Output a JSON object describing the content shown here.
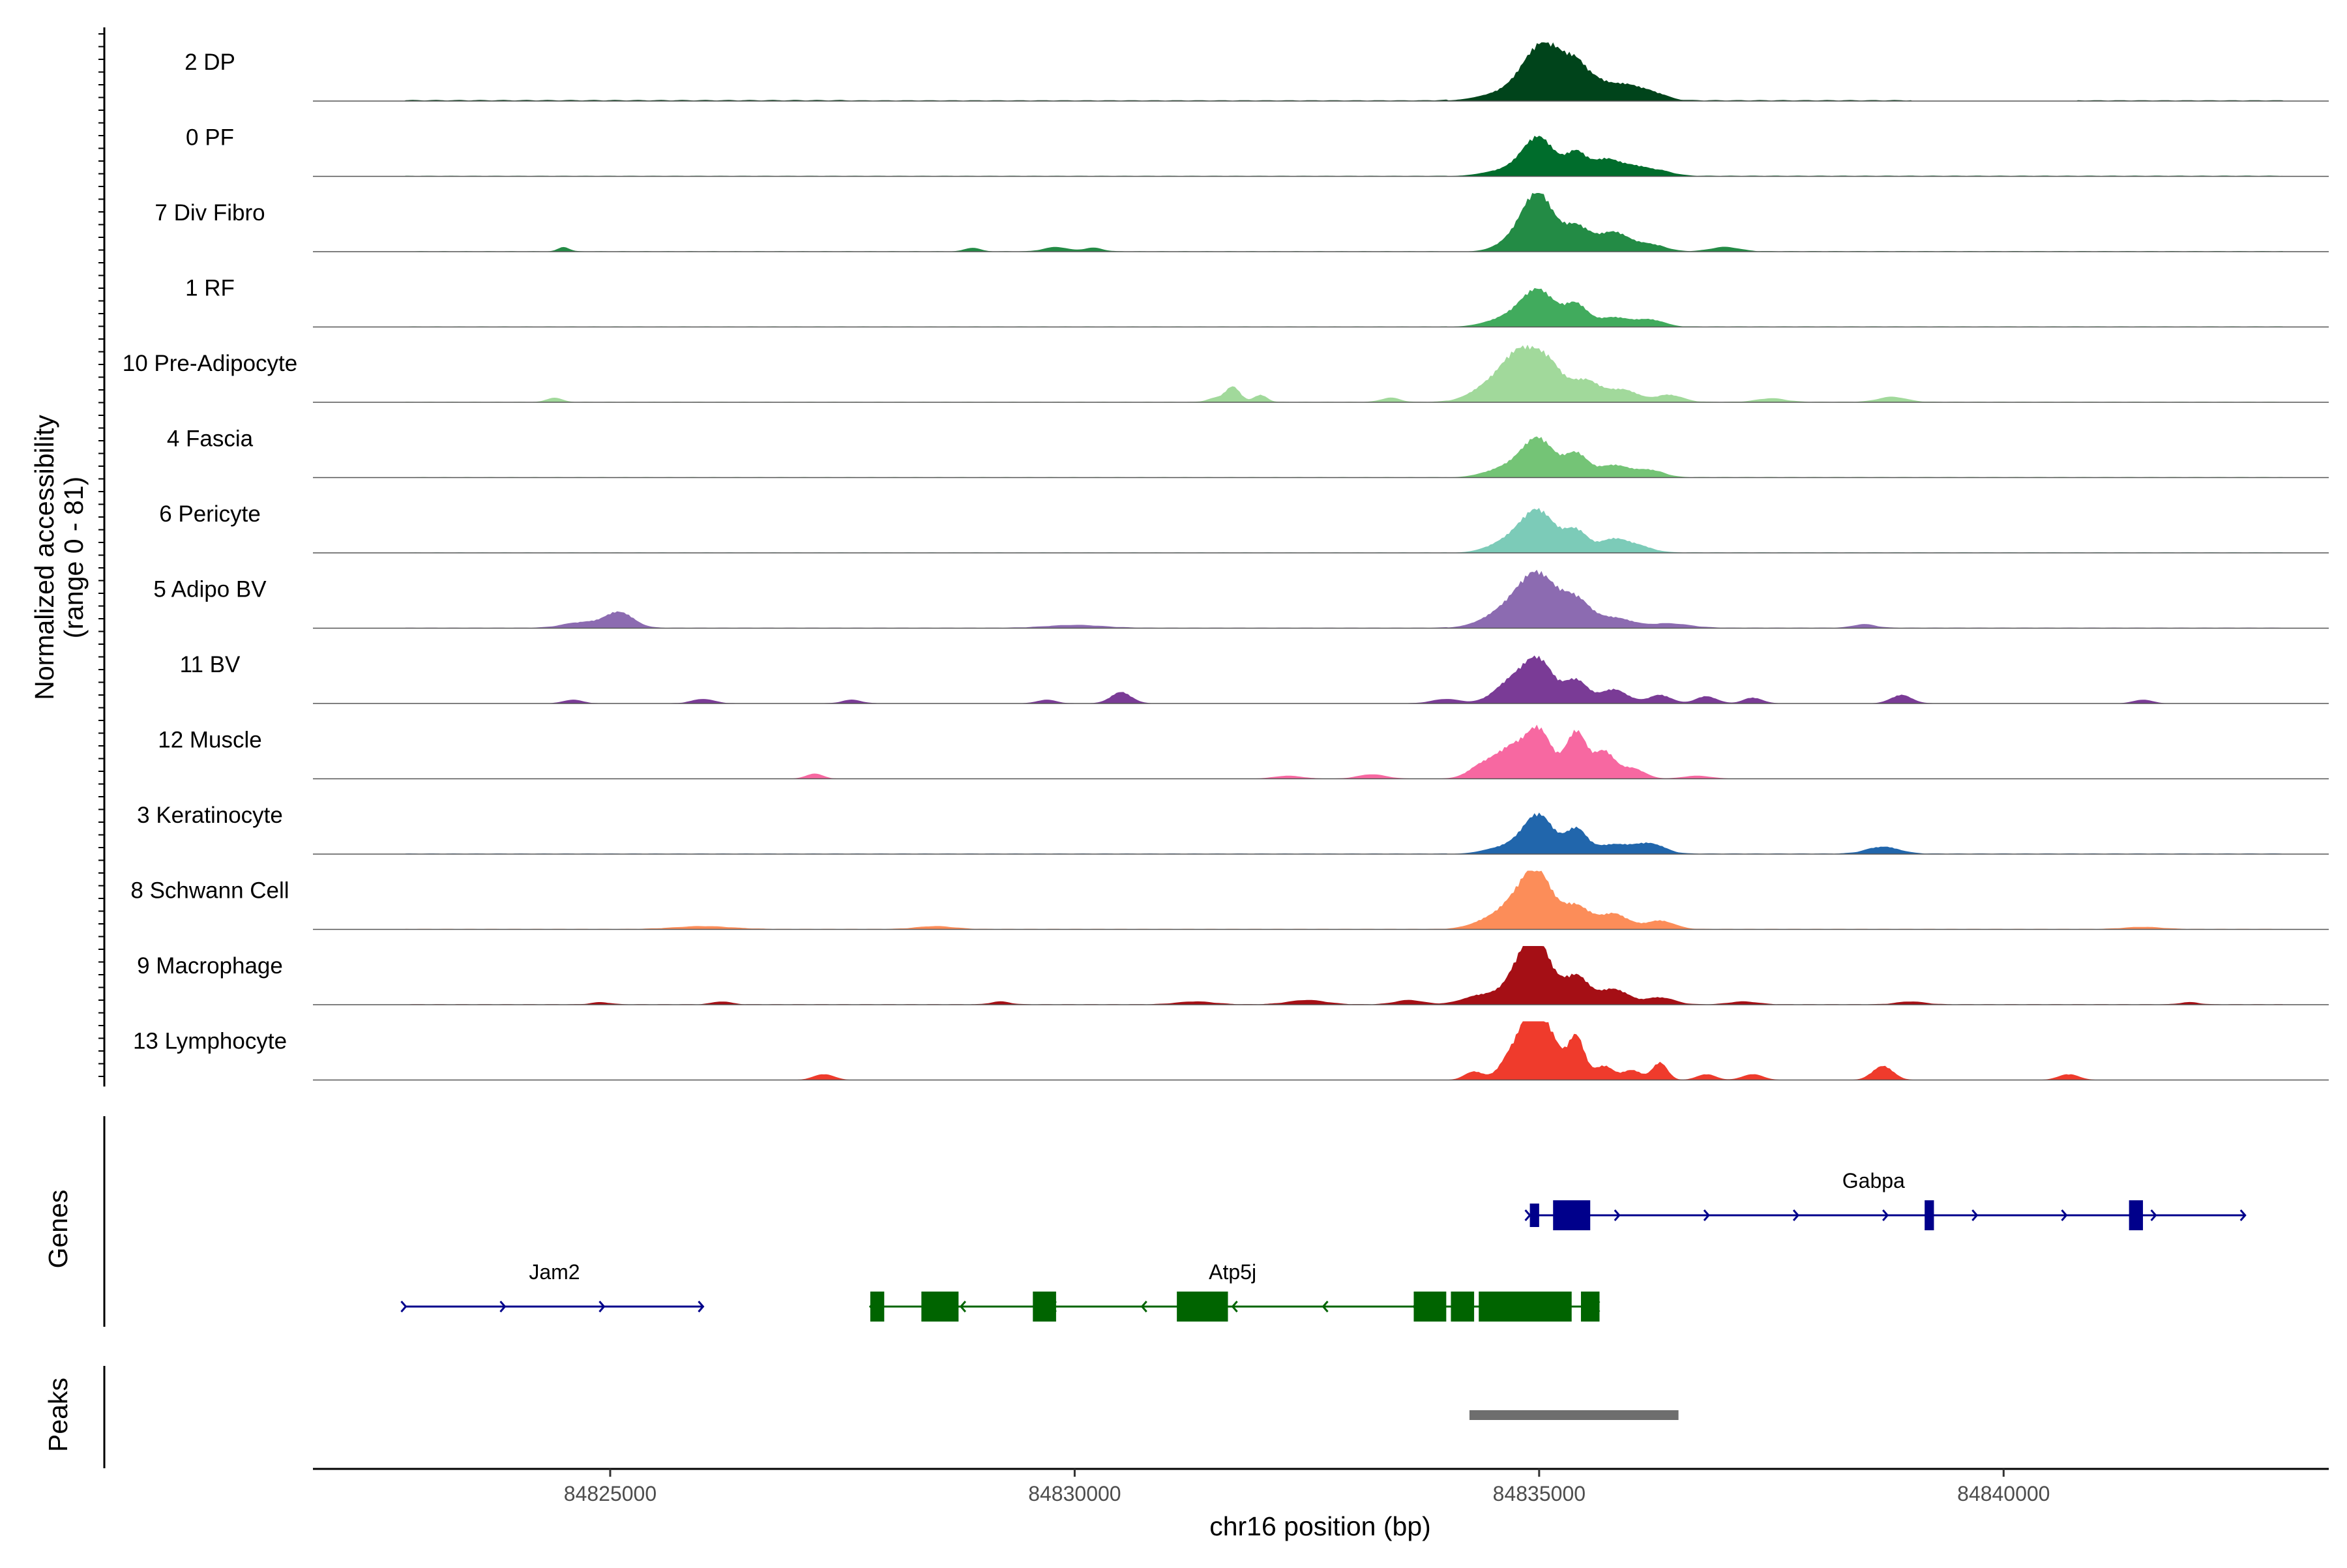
{
  "chart_data": {
    "type": "area",
    "chromosome": "chr16",
    "xlabel": "chr16 position (bp)",
    "ylabel_line1": "Normalized accessibility",
    "ylabel_line2": "(range 0 - 81)",
    "y_range": [
      0,
      81
    ],
    "xlim": [
      84821800,
      84843500
    ],
    "x_ticks": [
      84825000,
      84830000,
      84835000,
      84840000
    ],
    "x_tick_labels": [
      "84825000",
      "84830000",
      "84835000",
      "84840000"
    ],
    "genes_label": "Genes",
    "peaks_label": "Peaks",
    "tracks": [
      {
        "name": "2 DP",
        "color": "#00441b",
        "bg": [
          [
            84822800,
            84827500,
            1.5
          ],
          [
            84827500,
            84834000,
            1.2
          ],
          [
            84836300,
            84839000,
            1.4
          ],
          [
            84840800,
            84843000,
            1.2
          ]
        ],
        "peaks": [
          [
            84834800,
            18,
            320
          ],
          [
            84835000,
            57,
            180
          ],
          [
            84835200,
            30,
            140
          ],
          [
            84835400,
            37,
            110
          ],
          [
            84835600,
            25,
            130
          ],
          [
            84835900,
            22,
            160
          ],
          [
            84836200,
            12,
            150
          ]
        ]
      },
      {
        "name": "0 PF",
        "color": "#006d2c",
        "bg": [
          [
            84822800,
            84834000,
            0.8
          ],
          [
            84836300,
            84843000,
            1.0
          ]
        ],
        "peaks": [
          [
            84834700,
            10,
            260
          ],
          [
            84835000,
            52,
            170
          ],
          [
            84835400,
            32,
            110
          ],
          [
            84835700,
            22,
            140
          ],
          [
            84836000,
            14,
            170
          ],
          [
            84836300,
            6,
            150
          ]
        ]
      },
      {
        "name": "7 Div Fibro",
        "color": "#238b45",
        "bg": [
          [
            84822800,
            84834000,
            0.6
          ],
          [
            84836300,
            84843000,
            0.8
          ]
        ],
        "peaks": [
          [
            84824500,
            6,
            60
          ],
          [
            84828900,
            5,
            80
          ],
          [
            84829800,
            6,
            130
          ],
          [
            84830200,
            5,
            100
          ],
          [
            84834800,
            22,
            200
          ],
          [
            84835000,
            72,
            160
          ],
          [
            84835400,
            35,
            140
          ],
          [
            84835800,
            28,
            170
          ],
          [
            84836200,
            10,
            150
          ],
          [
            84837000,
            6,
            150
          ]
        ]
      },
      {
        "name": "1 RF",
        "color": "#41ab5d",
        "bg": [
          [
            84822800,
            84834000,
            0.6
          ],
          [
            84836300,
            84843000,
            0.8
          ]
        ],
        "peaks": [
          [
            84834700,
            14,
            240
          ],
          [
            84835000,
            48,
            180
          ],
          [
            84835400,
            30,
            120
          ],
          [
            84835800,
            14,
            180
          ],
          [
            84836200,
            10,
            140
          ]
        ]
      },
      {
        "name": "10 Pre-Adipocyte",
        "color": "#a1d99b",
        "bg": [
          [
            84822800,
            84834000,
            0.6
          ],
          [
            84836300,
            84843000,
            0.8
          ]
        ],
        "peaks": [
          [
            84824400,
            6,
            80
          ],
          [
            84831500,
            5,
            80
          ],
          [
            84831700,
            22,
            80
          ],
          [
            84832000,
            10,
            70
          ],
          [
            84833400,
            6,
            100
          ],
          [
            84834500,
            25,
            220
          ],
          [
            84834800,
            60,
            180
          ],
          [
            84835100,
            50,
            160
          ],
          [
            84835500,
            30,
            150
          ],
          [
            84835900,
            18,
            170
          ],
          [
            84836400,
            10,
            140
          ],
          [
            84837500,
            5,
            150
          ],
          [
            84838800,
            7,
            150
          ]
        ]
      },
      {
        "name": "4 Fascia",
        "color": "#74c476",
        "bg": [
          [
            84822800,
            84834000,
            0.6
          ],
          [
            84836300,
            84843000,
            0.8
          ]
        ],
        "peaks": [
          [
            84834700,
            16,
            240
          ],
          [
            84835000,
            50,
            170
          ],
          [
            84835400,
            32,
            120
          ],
          [
            84835800,
            18,
            180
          ],
          [
            84836200,
            10,
            140
          ]
        ]
      },
      {
        "name": "6 Pericyte",
        "color": "#7ccbb8",
        "bg": [
          [
            84822800,
            84834000,
            0.6
          ],
          [
            84836300,
            84843000,
            0.8
          ]
        ],
        "peaks": [
          [
            84834700,
            18,
            220
          ],
          [
            84835000,
            55,
            180
          ],
          [
            84835400,
            30,
            120
          ],
          [
            84835800,
            20,
            160
          ],
          [
            84836100,
            8,
            140
          ]
        ]
      },
      {
        "name": "5 Adipo BV",
        "color": "#8c6bb1",
        "bg": [
          [
            84822800,
            84834000,
            0.7
          ],
          [
            84836300,
            84843000,
            0.8
          ]
        ],
        "peaks": [
          [
            84824700,
            8,
            200
          ],
          [
            84825100,
            22,
            150
          ],
          [
            84830000,
            4,
            300
          ],
          [
            84834700,
            28,
            260
          ],
          [
            84835000,
            65,
            200
          ],
          [
            84835400,
            36,
            150
          ],
          [
            84835800,
            15,
            200
          ],
          [
            84836400,
            6,
            220
          ],
          [
            84838500,
            5,
            120
          ]
        ]
      },
      {
        "name": "11 BV",
        "color": "#7a3b96",
        "bg": [
          [
            84822800,
            84843000,
            0.4
          ]
        ],
        "peaks": [
          [
            84824600,
            5,
            100
          ],
          [
            84826000,
            6,
            120
          ],
          [
            84827600,
            5,
            100
          ],
          [
            84829700,
            5,
            100
          ],
          [
            84830500,
            16,
            110
          ],
          [
            84834000,
            6,
            150
          ],
          [
            84834700,
            30,
            180
          ],
          [
            84835000,
            58,
            160
          ],
          [
            84835400,
            32,
            120
          ],
          [
            84835800,
            20,
            150
          ],
          [
            84836300,
            12,
            120
          ],
          [
            84836800,
            10,
            110
          ],
          [
            84837300,
            8,
            100
          ],
          [
            84838900,
            12,
            110
          ],
          [
            84841500,
            5,
            100
          ]
        ]
      },
      {
        "name": "12 Muscle",
        "color": "#f768a1",
        "bg": [
          [
            84822800,
            84843000,
            0.3
          ]
        ],
        "peaks": [
          [
            84827200,
            7,
            90
          ],
          [
            84832300,
            4,
            150
          ],
          [
            84833200,
            6,
            150
          ],
          [
            84834400,
            20,
            150
          ],
          [
            84834700,
            40,
            150
          ],
          [
            84835000,
            68,
            140
          ],
          [
            84835400,
            67,
            110
          ],
          [
            84835700,
            38,
            110
          ],
          [
            84836000,
            15,
            130
          ],
          [
            84836700,
            4,
            150
          ]
        ]
      },
      {
        "name": "3 Keratinocyte",
        "color": "#2166ac",
        "bg": [
          [
            84822800,
            84834000,
            0.8
          ],
          [
            84836300,
            84843000,
            0.9
          ]
        ],
        "peaks": [
          [
            84834700,
            12,
            240
          ],
          [
            84835000,
            52,
            160
          ],
          [
            84835400,
            34,
            110
          ],
          [
            84835800,
            14,
            200
          ],
          [
            84836200,
            14,
            150
          ],
          [
            84838700,
            10,
            170
          ]
        ]
      },
      {
        "name": "8 Schwann Cell",
        "color": "#fc8d59",
        "bg": [
          [
            84822800,
            84843000,
            0.7
          ]
        ],
        "peaks": [
          [
            84826000,
            4,
            300
          ],
          [
            84828500,
            4,
            200
          ],
          [
            84834500,
            14,
            200
          ],
          [
            84834800,
            35,
            180
          ],
          [
            84835000,
            65,
            160
          ],
          [
            84835400,
            32,
            140
          ],
          [
            84835800,
            22,
            160
          ],
          [
            84836300,
            12,
            150
          ],
          [
            84841500,
            3,
            200
          ]
        ]
      },
      {
        "name": "9 Macrophage",
        "color": "#a50f15",
        "bg": [
          [
            84822800,
            84843000,
            0.7
          ]
        ],
        "peaks": [
          [
            84824900,
            3,
            100
          ],
          [
            84826200,
            4,
            100
          ],
          [
            84829200,
            4,
            100
          ],
          [
            84831300,
            4,
            200
          ],
          [
            84832500,
            6,
            200
          ],
          [
            84833600,
            6,
            150
          ],
          [
            84834400,
            14,
            200
          ],
          [
            84834800,
            45,
            150
          ],
          [
            84835000,
            75,
            150
          ],
          [
            84835400,
            40,
            130
          ],
          [
            84835800,
            22,
            160
          ],
          [
            84836300,
            10,
            150
          ],
          [
            84837200,
            4,
            150
          ],
          [
            84839000,
            4,
            150
          ],
          [
            84842000,
            3,
            100
          ]
        ]
      },
      {
        "name": "13 Lymphocyte",
        "color": "#ef3b2c",
        "bg": [
          [
            84822800,
            84843000,
            0.2
          ]
        ],
        "peaks": [
          [
            84827300,
            8,
            110
          ],
          [
            84834300,
            12,
            100
          ],
          [
            84834700,
            35,
            120
          ],
          [
            84834900,
            75,
            110
          ],
          [
            84835100,
            65,
            120
          ],
          [
            84835400,
            62,
            90
          ],
          [
            84835700,
            20,
            100
          ],
          [
            84836000,
            14,
            100
          ],
          [
            84836300,
            25,
            80
          ],
          [
            84836800,
            8,
            100
          ],
          [
            84837300,
            8,
            110
          ],
          [
            84838700,
            20,
            110
          ],
          [
            84840700,
            8,
            110
          ]
        ]
      }
    ],
    "genes": [
      {
        "name": "Gabpa",
        "color": "#00008b",
        "strand": "+",
        "start": 84834900,
        "end": 84842600,
        "row": 0,
        "exons": [
          [
            84834900,
            84835000,
            "s"
          ],
          [
            84835150,
            84835550,
            "l"
          ],
          [
            84839150,
            84839250,
            "l"
          ],
          [
            84841350,
            84841500,
            "l"
          ]
        ]
      },
      {
        "name": "Jam2",
        "color": "#00008b",
        "strand": "+",
        "start": 84822800,
        "end": 84826000,
        "row": 1,
        "exons": []
      },
      {
        "name": "Atp5j",
        "color": "#006400",
        "strand": "-",
        "start": 84827800,
        "end": 84835600,
        "row": 1,
        "exons": [
          [
            84827800,
            84827950,
            "l"
          ],
          [
            84828350,
            84828750,
            "l"
          ],
          [
            84829550,
            84829800,
            "l"
          ],
          [
            84831100,
            84831650,
            "l"
          ],
          [
            84833650,
            84834000,
            "l"
          ],
          [
            84834050,
            84834300,
            "l"
          ],
          [
            84834350,
            84835350,
            "l"
          ],
          [
            84835450,
            84835650,
            "l"
          ]
        ]
      }
    ],
    "peaks": [
      [
        84834250,
        84836500
      ]
    ]
  }
}
